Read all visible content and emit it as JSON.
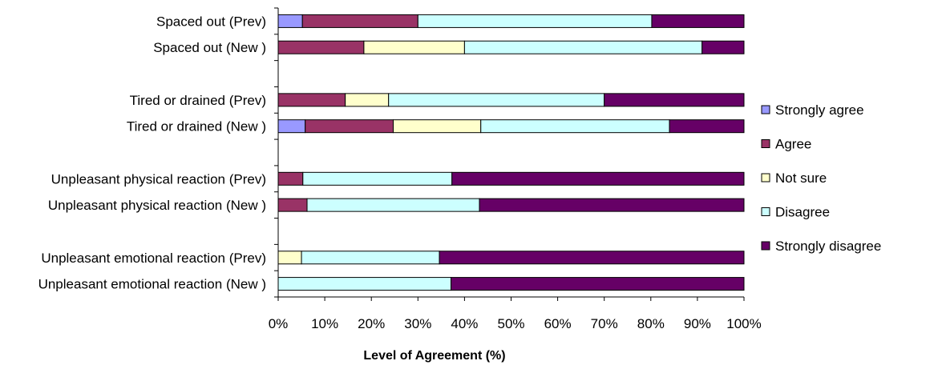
{
  "chart_data": {
    "type": "bar",
    "orientation": "horizontal",
    "stacked": "percent",
    "categories": [
      "Spaced out (Prev)",
      "Spaced out (New )",
      "",
      "Tired or drained (Prev)",
      "Tired or drained (New )",
      "",
      "Unpleasant physical reaction (Prev)",
      "Unpleasant physical reaction (New )",
      "",
      "Unpleasant emotional reaction (Prev)",
      "Unpleasant emotional reaction (New )"
    ],
    "series": [
      {
        "name": "Strongly agree",
        "color": "#9999FF",
        "values": [
          5.2,
          0,
          null,
          0,
          5.8,
          null,
          0,
          0,
          null,
          0,
          0
        ]
      },
      {
        "name": "Agree",
        "color": "#993366",
        "values": [
          24.8,
          18.4,
          null,
          14.4,
          18.9,
          null,
          5.3,
          6.2,
          null,
          0,
          0
        ]
      },
      {
        "name": "Not sure",
        "color": "#FFFFCC",
        "values": [
          0,
          21.6,
          null,
          9.3,
          18.8,
          null,
          0,
          0,
          null,
          5.0,
          0
        ]
      },
      {
        "name": "Disagree",
        "color": "#CCFFFF",
        "values": [
          50.2,
          51.0,
          null,
          46.3,
          40.5,
          null,
          32.0,
          37.0,
          null,
          29.6,
          37.1
        ]
      },
      {
        "name": "Strongly disagree",
        "color": "#660066",
        "values": [
          19.8,
          9.0,
          null,
          30.0,
          16.0,
          null,
          62.7,
          56.8,
          null,
          65.4,
          62.9
        ]
      }
    ],
    "xlim": [
      0,
      100
    ],
    "xticks": [
      "0%",
      "10%",
      "20%",
      "30%",
      "40%",
      "50%",
      "60%",
      "70%",
      "80%",
      "90%",
      "100%"
    ],
    "xlabel": "Level of Agreement (%)",
    "ylabel": "",
    "title": "",
    "grid": false,
    "legend_position": "right"
  }
}
